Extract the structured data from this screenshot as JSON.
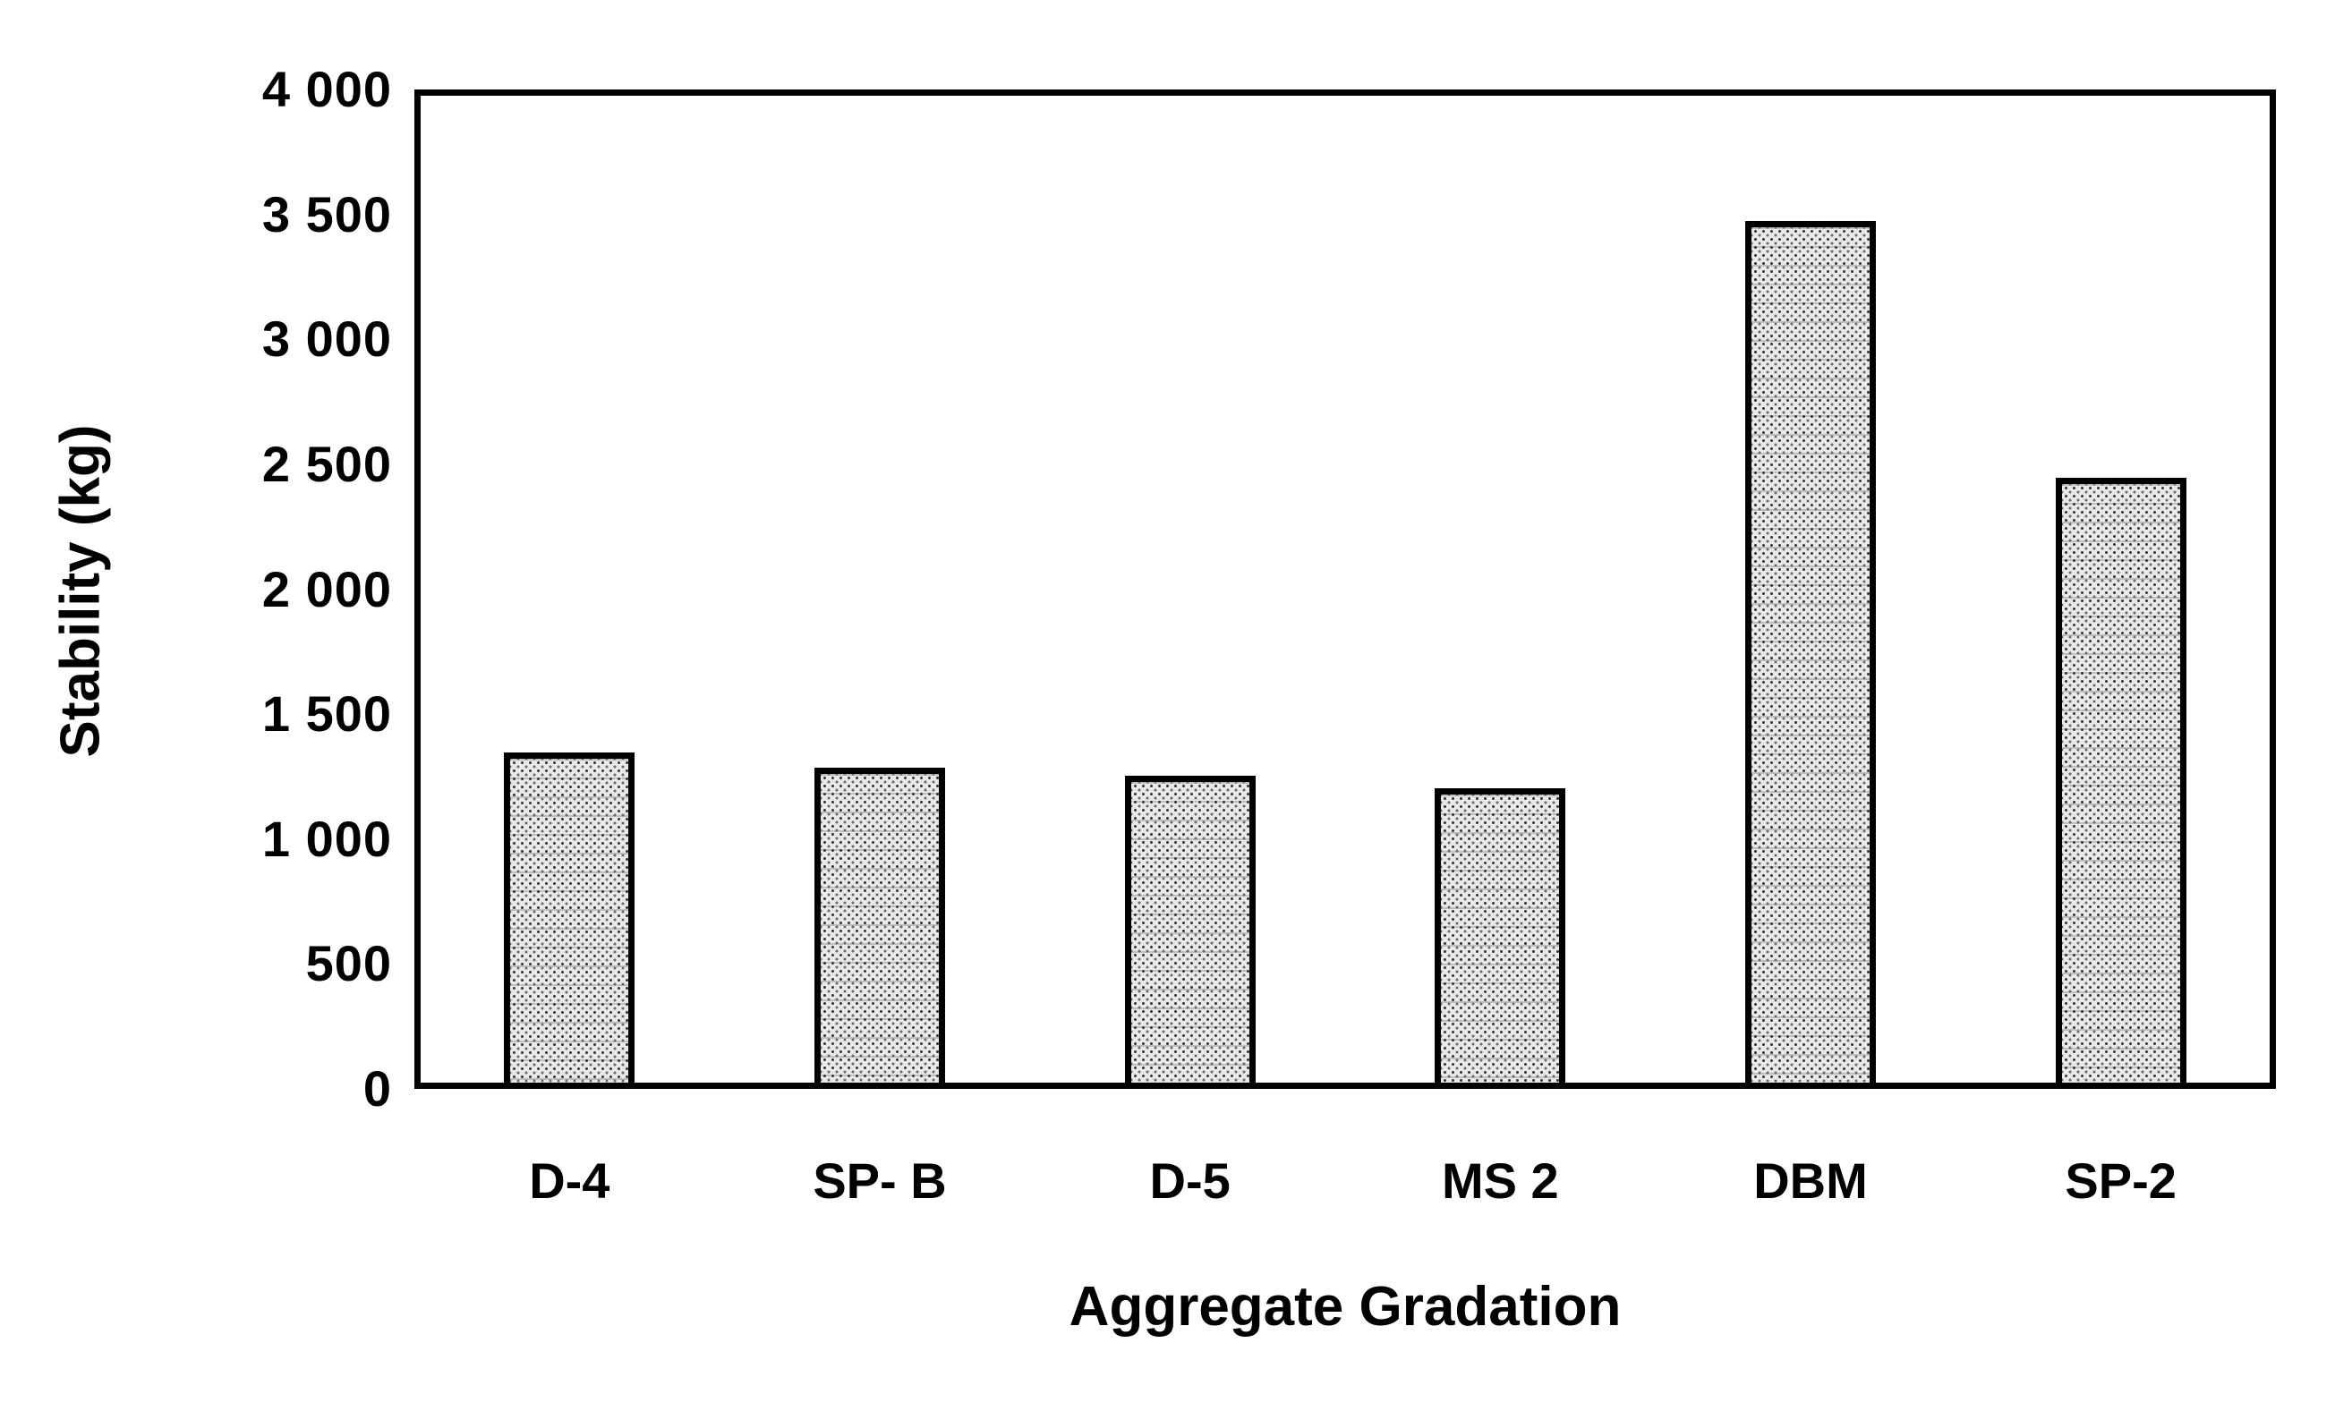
{
  "chart_data": {
    "type": "bar",
    "title": "",
    "categories": [
      "D-4",
      "SP- B",
      "D-5",
      "MS 2",
      "DBM",
      "SP-2"
    ],
    "values": [
      1320,
      1260,
      1230,
      1180,
      3450,
      2420
    ],
    "xlabel": "Aggregate Gradation",
    "ylabel": "Stability (kg)",
    "ylim": [
      0,
      4000
    ],
    "ytick_interval": 500,
    "ytick_labels": [
      "0",
      "500",
      "1 000",
      "1 500",
      "2 000",
      "2 500",
      "3 000",
      "3 500",
      "4 000"
    ],
    "grid": false,
    "legend": null,
    "colors": {
      "bar_fill": "#e9e9e9",
      "bar_pattern": "halftone-dots",
      "bar_border": "#000000",
      "frame": "#000000",
      "text": "#000000",
      "background": "#ffffff"
    }
  }
}
